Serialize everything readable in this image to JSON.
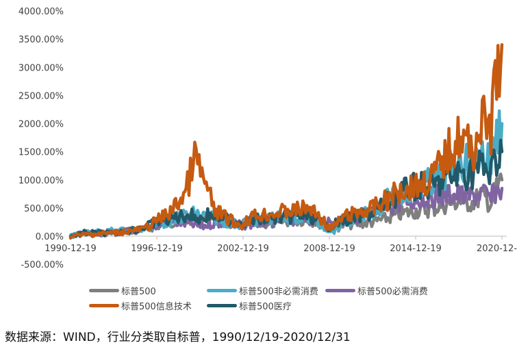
{
  "chart_data": {
    "type": "line",
    "title": "",
    "xlabel": "",
    "ylabel": "",
    "ylim": [
      -500,
      4000
    ],
    "yticks": [
      "4000.00%",
      "3500.00%",
      "3000.00%",
      "2500.00%",
      "2000.00%",
      "1500.00%",
      "1000.00%",
      "500.00%",
      "0.00%",
      "-500.00%"
    ],
    "xticks": [
      "1990-12-19",
      "1996-12-19",
      "2002-12-19",
      "2008-12-19",
      "2014-12-19",
      "2020-12-"
    ],
    "grid": false,
    "legend_position": "bottom",
    "x": [
      1990.96,
      1992,
      1994,
      1996,
      1997,
      1998,
      1999,
      1999.6,
      2000.0,
      2000.5,
      2001,
      2002,
      2002.8,
      2003.5,
      2005,
      2007.5,
      2008.2,
      2008.9,
      2009.2,
      2010,
      2011,
      2012,
      2013,
      2014,
      2015,
      2016,
      2017,
      2018,
      2018.9,
      2019.5,
      2020.2,
      2020.5,
      2020.96
    ],
    "series": [
      {
        "name": "标普500",
        "color": "#7f7f7f",
        "values": [
          0,
          40,
          60,
          120,
          180,
          250,
          300,
          320,
          330,
          310,
          280,
          220,
          160,
          200,
          240,
          300,
          240,
          150,
          130,
          200,
          220,
          250,
          320,
          400,
          450,
          480,
          560,
          620,
          600,
          720,
          580,
          820,
          1000
        ]
      },
      {
        "name": "标普500非必需消费",
        "color": "#4bacc6",
        "values": [
          0,
          60,
          90,
          130,
          200,
          280,
          380,
          400,
          380,
          330,
          320,
          240,
          200,
          280,
          320,
          330,
          240,
          120,
          90,
          250,
          340,
          450,
          650,
          750,
          900,
          950,
          1100,
          1350,
          1250,
          1500,
          1300,
          1800,
          2000
        ]
      },
      {
        "name": "标普500必需消费",
        "color": "#8064a2",
        "values": [
          0,
          50,
          70,
          110,
          200,
          250,
          220,
          200,
          160,
          200,
          240,
          230,
          200,
          220,
          260,
          330,
          270,
          230,
          210,
          280,
          350,
          420,
          520,
          600,
          650,
          700,
          740,
          730,
          700,
          780,
          650,
          800,
          850
        ]
      },
      {
        "name": "标普500信息技术",
        "color": "#c55a11",
        "values": [
          0,
          30,
          60,
          120,
          280,
          450,
          800,
          1400,
          1150,
          800,
          450,
          300,
          180,
          350,
          400,
          500,
          380,
          160,
          150,
          350,
          420,
          500,
          650,
          850,
          900,
          1000,
          1400,
          1800,
          1500,
          2000,
          1900,
          2700,
          3400
        ]
      },
      {
        "name": "标普500医疗",
        "color": "#215968",
        "values": [
          0,
          60,
          50,
          150,
          250,
          320,
          380,
          350,
          300,
          380,
          360,
          300,
          250,
          280,
          320,
          360,
          270,
          170,
          200,
          280,
          350,
          420,
          600,
          780,
          900,
          850,
          1000,
          1100,
          1150,
          1250,
          1100,
          1350,
          1500
        ]
      }
    ]
  },
  "legend": {
    "items": [
      {
        "label": "标普500",
        "color": "#7f7f7f"
      },
      {
        "label": "标普500非必需消费",
        "color": "#4bacc6"
      },
      {
        "label": "标普500必需消费",
        "color": "#8064a2"
      },
      {
        "label": "标普500信息技术",
        "color": "#c55a11"
      },
      {
        "label": "标普500医疗",
        "color": "#215968"
      }
    ]
  },
  "footer": {
    "source": "数据来源：WIND，行业分类取自标普，1990/12/19-2020/12/31"
  }
}
